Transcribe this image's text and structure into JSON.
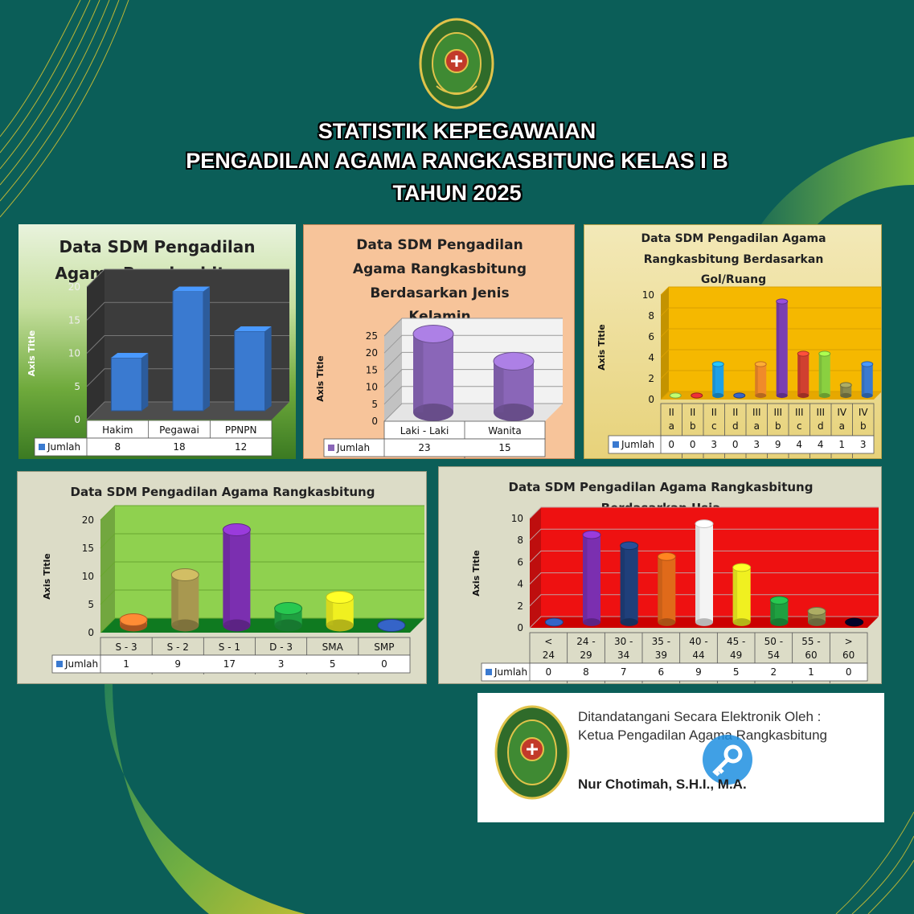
{
  "header": {
    "line1": "STATISTIK KEPEGAWAIAN",
    "line2": "PENGADILAN AGAMA RANGKASBITUNG KELAS I B",
    "line3": "TAHUN 2025",
    "logo_text": "PENGADILAN AGAMA RANGKASBITUNG"
  },
  "colors": {
    "background": "#0b5e58",
    "accent": "#f0c020"
  },
  "signature": {
    "line1": "Ditandatangani  Secara Elektronik Oleh :",
    "line2": "Ketua Pengadilan  Agama Rangkasbitung",
    "name": "Nur Chotimah, S.H.I., M.A.",
    "logo_text": "PENGADILAN AGAMA RANGKASBITUNG"
  },
  "chart_data": [
    {
      "type": "bar",
      "title": "Data SDM Pengadilan Agama Rangkasbitung",
      "ylabel": "Axis Title",
      "categories": [
        "Hakim",
        "Pegawai",
        "PPNPN"
      ],
      "series": [
        {
          "name": "Jumlah",
          "values": [
            8,
            18,
            12
          ],
          "color": "#3a7ad0"
        }
      ],
      "ylim": [
        0,
        20
      ],
      "yticks": [
        0,
        5,
        10,
        15,
        20
      ],
      "legend": "data-table",
      "grid": true
    },
    {
      "type": "bar",
      "title": "Data SDM Pengadilan Agama Rangkasbitung Berdasarkan Jenis Kelamin",
      "ylabel": "Axis Title",
      "categories": [
        "Laki - Laki",
        "Wanita"
      ],
      "series": [
        {
          "name": "Jumlah",
          "values": [
            23,
            15
          ],
          "color": "#8a66b8"
        }
      ],
      "ylim": [
        0,
        25
      ],
      "yticks": [
        0,
        5,
        10,
        15,
        20,
        25
      ],
      "legend": "data-table",
      "grid": true
    },
    {
      "type": "bar",
      "title": "Data SDM Pengadilan Agama Rangkasbitung Berdasarkan Gol/Ruang",
      "ylabel": "Axis Title",
      "categories": [
        "II a",
        "II b",
        "II c",
        "II d",
        "III a",
        "III b",
        "III c",
        "III d",
        "IV a",
        "IV b"
      ],
      "series": [
        {
          "name": "Jumlah",
          "values": [
            0,
            0,
            3,
            0,
            3,
            9,
            4,
            4,
            1,
            3
          ]
        }
      ],
      "ylim": [
        0,
        10
      ],
      "yticks": [
        0,
        2,
        4,
        6,
        8,
        10
      ],
      "legend": "data-table",
      "grid": true
    },
    {
      "type": "bar",
      "title": "Data SDM Pengadilan Agama Rangkasbitung Berdasarkan Pendidikan",
      "ylabel": "Axis Title",
      "categories": [
        "S - 3",
        "S - 2",
        "S - 1",
        "D - 3",
        "SMA",
        "SMP"
      ],
      "series": [
        {
          "name": "Jumlah",
          "values": [
            1,
            9,
            17,
            3,
            5,
            0
          ]
        }
      ],
      "ylim": [
        0,
        20
      ],
      "yticks": [
        0,
        5,
        10,
        15,
        20
      ],
      "legend": "data-table",
      "grid": true
    },
    {
      "type": "bar",
      "title": "Data SDM Pengadilan Agama Rangkasbitung Berdasarkan Usia",
      "ylabel": "Axis Title",
      "categories": [
        "< 24",
        "24 - 29",
        "30 - 34",
        "35 - 39",
        "40 - 44",
        "45 - 49",
        "50 - 54",
        "55 - 60",
        "> 60"
      ],
      "series": [
        {
          "name": "Jumlah",
          "values": [
            0,
            8,
            7,
            6,
            9,
            5,
            2,
            1,
            0
          ]
        }
      ],
      "ylim": [
        0,
        10
      ],
      "yticks": [
        0,
        2,
        4,
        6,
        8,
        10
      ],
      "legend": "data-table",
      "grid": true
    }
  ]
}
